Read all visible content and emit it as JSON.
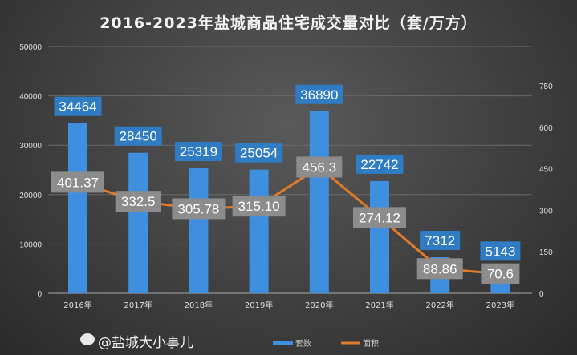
{
  "chart_data": {
    "type": "bar+line",
    "title": "2016-2023年盐城商品住宅成交量对比（套/万方）",
    "categories": [
      "2016年",
      "2017年",
      "2018年",
      "2019年",
      "2020年",
      "2021年",
      "2022年",
      "2023年"
    ],
    "series": [
      {
        "name": "套数",
        "type": "bar",
        "axis": "left",
        "color": "#3f8fe0",
        "values": [
          34464,
          28450,
          25319,
          25054,
          36890,
          22742,
          7312,
          5143
        ],
        "labels": [
          "34464",
          "28450",
          "25319",
          "25054",
          "36890",
          "22742",
          "7312",
          "5143"
        ]
      },
      {
        "name": "面积",
        "type": "line",
        "axis": "right",
        "color": "#e07b2a",
        "values": [
          401.37,
          332.5,
          305.78,
          315.1,
          456.3,
          274.12,
          88.86,
          70.6
        ],
        "labels": [
          "401.37",
          "332.5",
          "305.78",
          "315.10",
          "456.3",
          "274.12",
          "88.86",
          "70.6"
        ]
      }
    ],
    "y_left": {
      "ylim": [
        0,
        50000
      ],
      "ticks": [
        "0",
        "10000",
        "20000",
        "30000",
        "40000",
        "50000"
      ]
    },
    "y_right": {
      "ylim": [
        0,
        750
      ],
      "ticks": [
        "0",
        "150",
        "300",
        "450",
        "600",
        "750"
      ]
    },
    "legend": {
      "placement": "bottom",
      "entries": [
        "套数",
        "面积"
      ]
    },
    "grid": true
  },
  "watermark": "@盐城大小事儿"
}
